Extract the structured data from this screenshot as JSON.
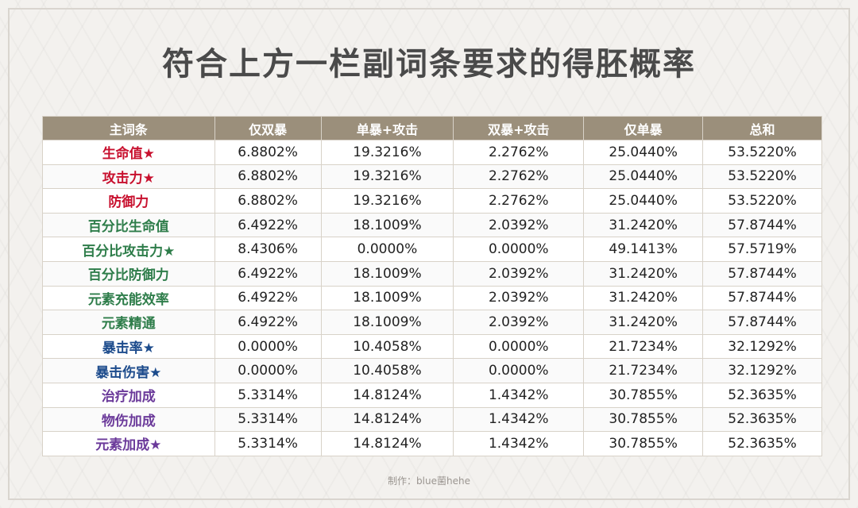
{
  "title": "符合上方一栏副词条要求的得胚概率",
  "table": {
    "headers": [
      "主词条",
      "仅双暴",
      "单暴+攻击",
      "双暴+攻击",
      "仅单暴",
      "总和"
    ],
    "rows": [
      {
        "name": "生命值★",
        "color": "#c8102e",
        "values": [
          "6.8802%",
          "19.3216%",
          "2.2762%",
          "25.0440%",
          "53.5220%"
        ]
      },
      {
        "name": "攻击力★",
        "color": "#c8102e",
        "values": [
          "6.8802%",
          "19.3216%",
          "2.2762%",
          "25.0440%",
          "53.5220%"
        ]
      },
      {
        "name": "防御力",
        "color": "#c8102e",
        "values": [
          "6.8802%",
          "19.3216%",
          "2.2762%",
          "25.0440%",
          "53.5220%"
        ]
      },
      {
        "name": "百分比生命值",
        "color": "#2e7d4a",
        "values": [
          "6.4922%",
          "18.1009%",
          "2.0392%",
          "31.2420%",
          "57.8744%"
        ]
      },
      {
        "name": "百分比攻击力★",
        "color": "#2e7d4a",
        "values": [
          "8.4306%",
          "0.0000%",
          "0.0000%",
          "49.1413%",
          "57.5719%"
        ]
      },
      {
        "name": "百分比防御力",
        "color": "#2e7d4a",
        "values": [
          "6.4922%",
          "18.1009%",
          "2.0392%",
          "31.2420%",
          "57.8744%"
        ]
      },
      {
        "name": "元素充能效率",
        "color": "#2e7d4a",
        "values": [
          "6.4922%",
          "18.1009%",
          "2.0392%",
          "31.2420%",
          "57.8744%"
        ]
      },
      {
        "name": "元素精通",
        "color": "#2e7d4a",
        "values": [
          "6.4922%",
          "18.1009%",
          "2.0392%",
          "31.2420%",
          "57.8744%"
        ]
      },
      {
        "name": "暴击率★",
        "color": "#1c4b8c",
        "values": [
          "0.0000%",
          "10.4058%",
          "0.0000%",
          "21.7234%",
          "32.1292%"
        ]
      },
      {
        "name": "暴击伤害★",
        "color": "#1c4b8c",
        "values": [
          "0.0000%",
          "10.4058%",
          "0.0000%",
          "21.7234%",
          "32.1292%"
        ]
      },
      {
        "name": "治疗加成",
        "color": "#6b3a9a",
        "values": [
          "5.3314%",
          "14.8124%",
          "1.4342%",
          "30.7855%",
          "52.3635%"
        ]
      },
      {
        "name": "物伤加成",
        "color": "#6b3a9a",
        "values": [
          "5.3314%",
          "14.8124%",
          "1.4342%",
          "30.7855%",
          "52.3635%"
        ]
      },
      {
        "name": "元素加成★",
        "color": "#6b3a9a",
        "values": [
          "5.3314%",
          "14.8124%",
          "1.4342%",
          "30.7855%",
          "52.3635%"
        ]
      }
    ]
  },
  "credit": "制作：blue菌hehe"
}
